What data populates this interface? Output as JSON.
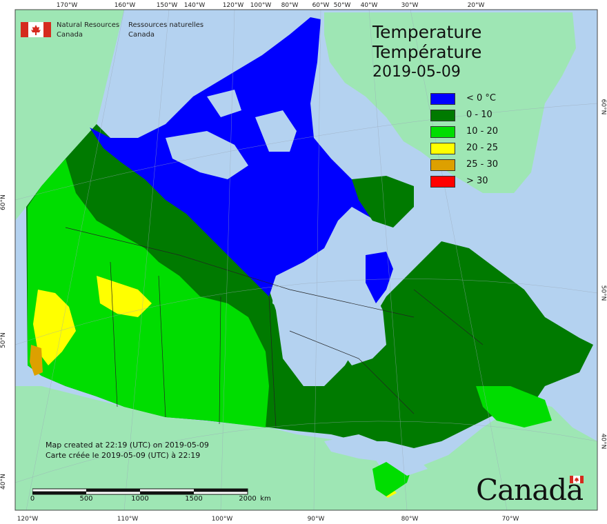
{
  "title": {
    "en": "Temperature",
    "fr": "Température",
    "date": "2019-05-09"
  },
  "agency": {
    "en_line1": "Natural Resources",
    "en_line2": "Canada",
    "fr_line1": "Ressources naturelles",
    "fr_line2": "Canada"
  },
  "legend": [
    {
      "label": "< 0 °C",
      "color": "#0000ff"
    },
    {
      "label": "0 - 10",
      "color": "#007a00"
    },
    {
      "label": "10 - 20",
      "color": "#00dd00"
    },
    {
      "label": "20 - 25",
      "color": "#ffff00"
    },
    {
      "label": "25 - 30",
      "color": "#dda000"
    },
    {
      "label": "> 30",
      "color": "#ff0000"
    }
  ],
  "created": {
    "en": "Map created at 22:19 (UTC) on 2019-05-09",
    "fr": "Carte créée le 2019-05-09 (UTC) à 22:19"
  },
  "scale": {
    "ticks": [
      "0",
      "500",
      "1000",
      "1500",
      "2000"
    ],
    "unit": "km"
  },
  "wordmark": "Canada",
  "axes": {
    "top": [
      "170°W",
      "160°W",
      "150°W",
      "140°W",
      "120°W",
      "100°W",
      "80°W",
      "60°W",
      "50°W",
      "40°W",
      "30°W",
      "20°W"
    ],
    "bottom": [
      "120°W",
      "110°W",
      "100°W",
      "90°W",
      "80°W",
      "70°W"
    ],
    "left": [
      "60°N",
      "50°N",
      "40°N"
    ],
    "right": [
      "60°N",
      "50°N",
      "40°N"
    ]
  },
  "colors": {
    "ocean": "#b4d2f0",
    "foreign_land": "#9ee6b4",
    "lakes": "#b4d2f0"
  }
}
